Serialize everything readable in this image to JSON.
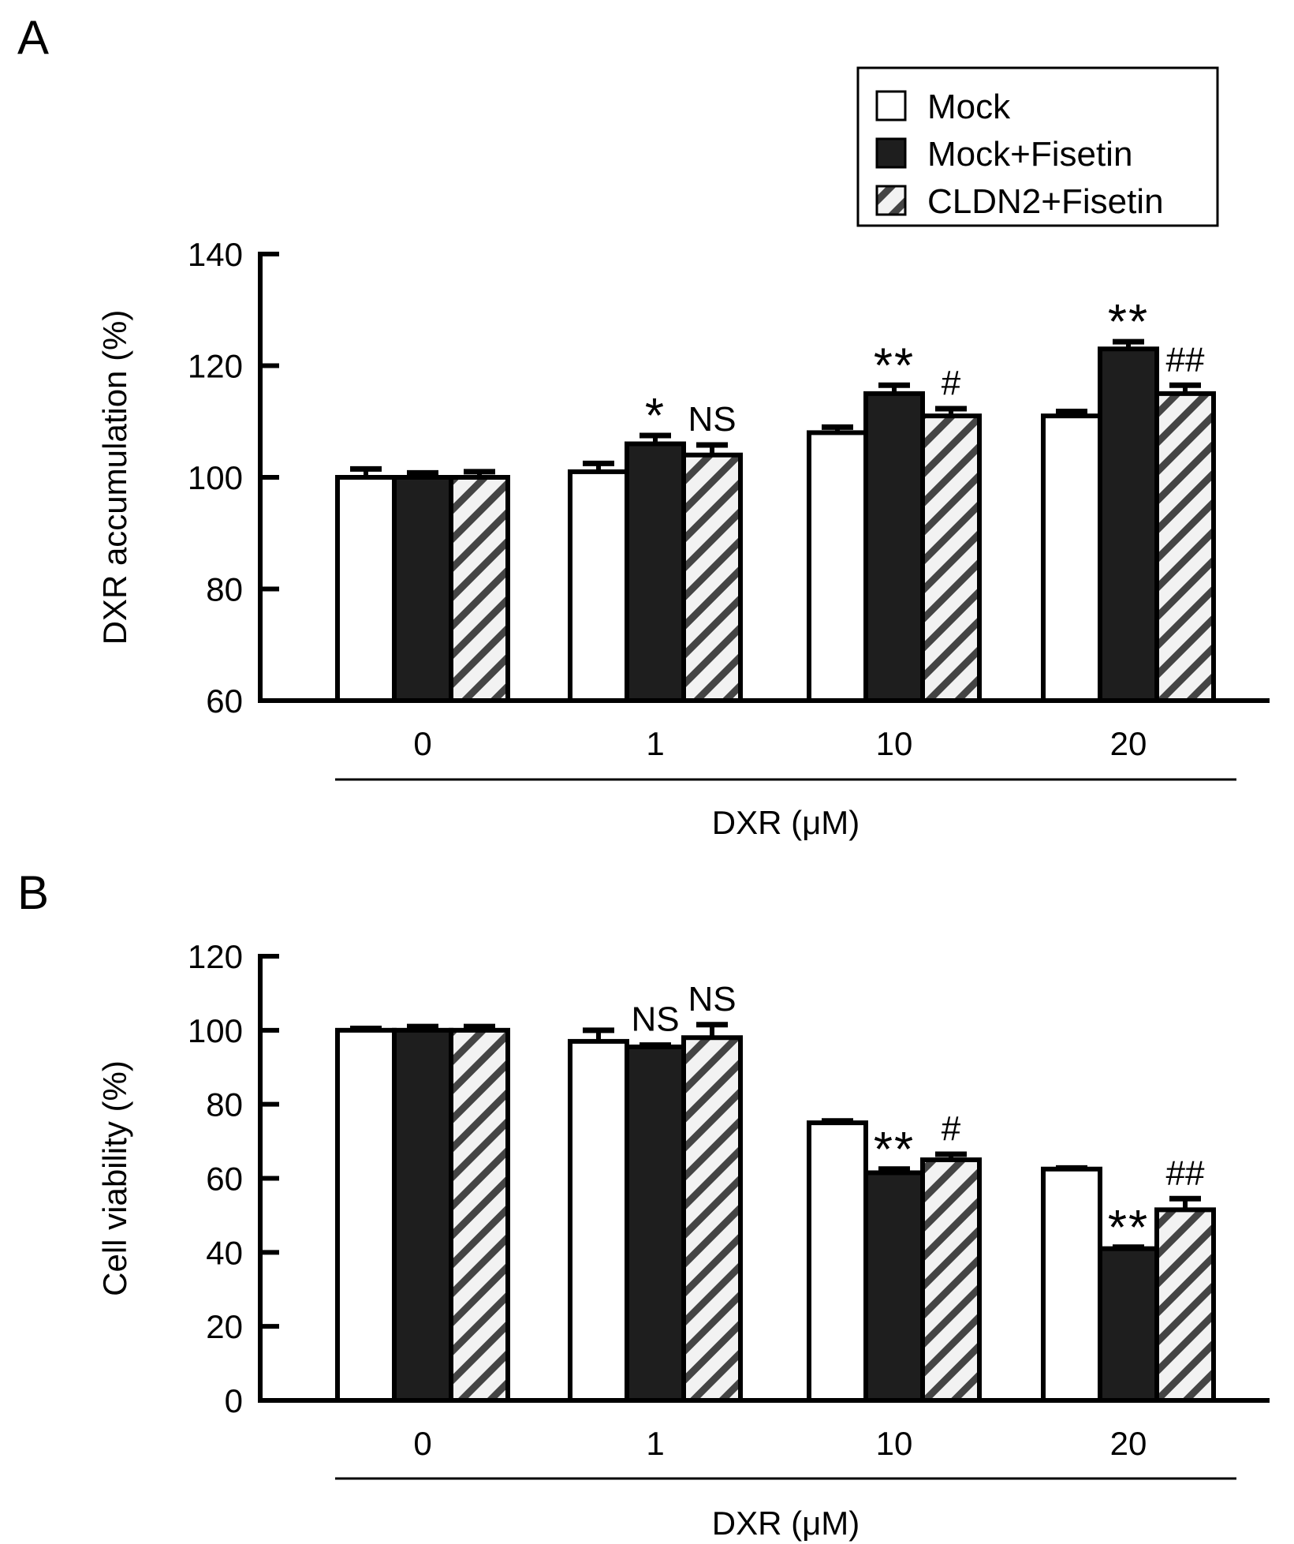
{
  "legend": {
    "items": [
      {
        "name": "Mock",
        "style": "open"
      },
      {
        "name": "Mock+Fisetin",
        "style": "filled"
      },
      {
        "name": "CLDN2+Fisetin",
        "style": "hatched"
      }
    ]
  },
  "chart_data": [
    {
      "panel": "A",
      "type": "bar",
      "title": "",
      "xlabel": "DXR (μM)",
      "ylabel": "DXR accumulation  (%)",
      "ylim": [
        60,
        140
      ],
      "yticks": [
        60,
        80,
        100,
        120,
        140
      ],
      "categories": [
        "0",
        "1",
        "10",
        "20"
      ],
      "series": [
        {
          "name": "Mock",
          "values": [
            100,
            101,
            108,
            111
          ],
          "errors": [
            1.5,
            1.5,
            1.0,
            0.8
          ]
        },
        {
          "name": "Mock+Fisetin",
          "values": [
            100,
            106,
            115,
            123
          ],
          "errors": [
            0.8,
            1.5,
            1.5,
            1.3
          ]
        },
        {
          "name": "CLDN2+Fisetin",
          "values": [
            100,
            104,
            111,
            115
          ],
          "errors": [
            1.0,
            1.8,
            1.3,
            1.5
          ]
        }
      ],
      "annotations": [
        {
          "category": "1",
          "series": "Mock+Fisetin",
          "text": "*"
        },
        {
          "category": "1",
          "series": "CLDN2+Fisetin",
          "text": "NS"
        },
        {
          "category": "10",
          "series": "Mock+Fisetin",
          "text": "**"
        },
        {
          "category": "10",
          "series": "CLDN2+Fisetin",
          "text": "#"
        },
        {
          "category": "20",
          "series": "Mock+Fisetin",
          "text": "**"
        },
        {
          "category": "20",
          "series": "CLDN2+Fisetin",
          "text": "##"
        }
      ]
    },
    {
      "panel": "B",
      "type": "bar",
      "title": "",
      "xlabel": "DXR (μM)",
      "ylabel": "Cell viability  (%)",
      "ylim": [
        0,
        120
      ],
      "yticks": [
        0,
        20,
        40,
        60,
        80,
        100,
        120
      ],
      "categories": [
        "0",
        "1",
        "10",
        "20"
      ],
      "series": [
        {
          "name": "Mock",
          "values": [
            100,
            97,
            75,
            62.5
          ],
          "errors": [
            0.5,
            3.0,
            0.5,
            0.3
          ]
        },
        {
          "name": "Mock+Fisetin",
          "values": [
            100,
            95.5,
            61.5,
            41
          ],
          "errors": [
            1.0,
            0.5,
            1.0,
            0.4
          ]
        },
        {
          "name": "CLDN2+Fisetin",
          "values": [
            100,
            98,
            65,
            51.5
          ],
          "errors": [
            1.0,
            3.5,
            1.5,
            3.0
          ]
        }
      ],
      "annotations": [
        {
          "category": "1",
          "series": "Mock+Fisetin",
          "text": "NS"
        },
        {
          "category": "1",
          "series": "CLDN2+Fisetin",
          "text": "NS"
        },
        {
          "category": "10",
          "series": "Mock+Fisetin",
          "text": "**"
        },
        {
          "category": "10",
          "series": "CLDN2+Fisetin",
          "text": "#"
        },
        {
          "category": "20",
          "series": "Mock+Fisetin",
          "text": "**"
        },
        {
          "category": "20",
          "series": "CLDN2+Fisetin",
          "text": "##"
        }
      ]
    }
  ]
}
